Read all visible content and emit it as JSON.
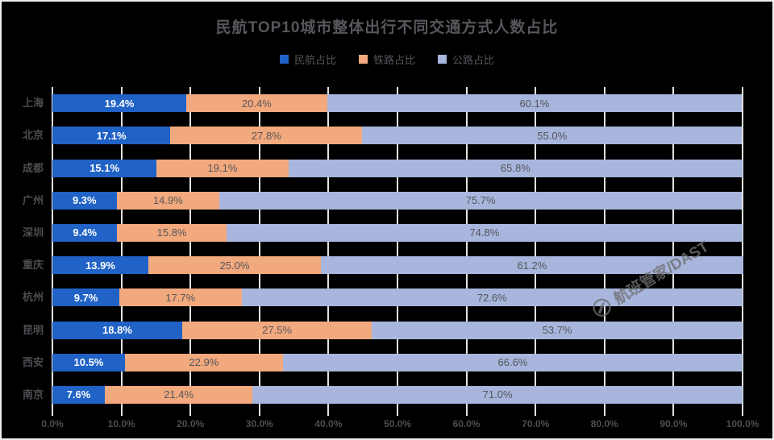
{
  "title": "民航TOP10城市整体出行不同交通方式人数占比",
  "watermark": {
    "text": "航班管家/DAST",
    "icon": "swoosh-circle-logo"
  },
  "colors": {
    "background": "#000000",
    "frame": "#efeeec",
    "gridline": "#e3e2e0",
    "title_text": "#55575c",
    "axis_text": "#4c4e52"
  },
  "chart_data": {
    "type": "bar",
    "orientation": "horizontal-stacked",
    "title": "民航TOP10城市整体出行不同交通方式人数占比",
    "categories": [
      "上海",
      "北京",
      "成都",
      "广州",
      "深圳",
      "重庆",
      "杭州",
      "昆明",
      "西安",
      "南京"
    ],
    "series": [
      {
        "name": "民航占比",
        "color": "#2062c6",
        "label_color": "#ffffff",
        "label_bold": true,
        "values": [
          19.4,
          17.1,
          15.1,
          9.3,
          9.4,
          13.9,
          9.7,
          18.8,
          10.5,
          7.6
        ]
      },
      {
        "name": "铁路占比",
        "color": "#f2a97d",
        "label_color": "#55565b",
        "label_bold": false,
        "values": [
          20.4,
          27.8,
          19.1,
          14.9,
          15.8,
          25.0,
          17.7,
          27.5,
          22.9,
          21.4
        ]
      },
      {
        "name": "公路占比",
        "color": "#a8b5dc",
        "label_color": "#55565b",
        "label_bold": false,
        "values": [
          60.1,
          55.0,
          65.8,
          75.7,
          74.8,
          61.2,
          72.6,
          53.7,
          66.6,
          71.0
        ]
      }
    ],
    "x_ticks": [
      "0.0%",
      "10.0%",
      "20.0%",
      "30.0%",
      "40.0%",
      "50.0%",
      "60.0%",
      "70.0%",
      "80.0%",
      "90.0%",
      "100.0%"
    ],
    "xlim": [
      0,
      100
    ],
    "value_suffix": "%",
    "legend_position": "top",
    "grid": true
  }
}
